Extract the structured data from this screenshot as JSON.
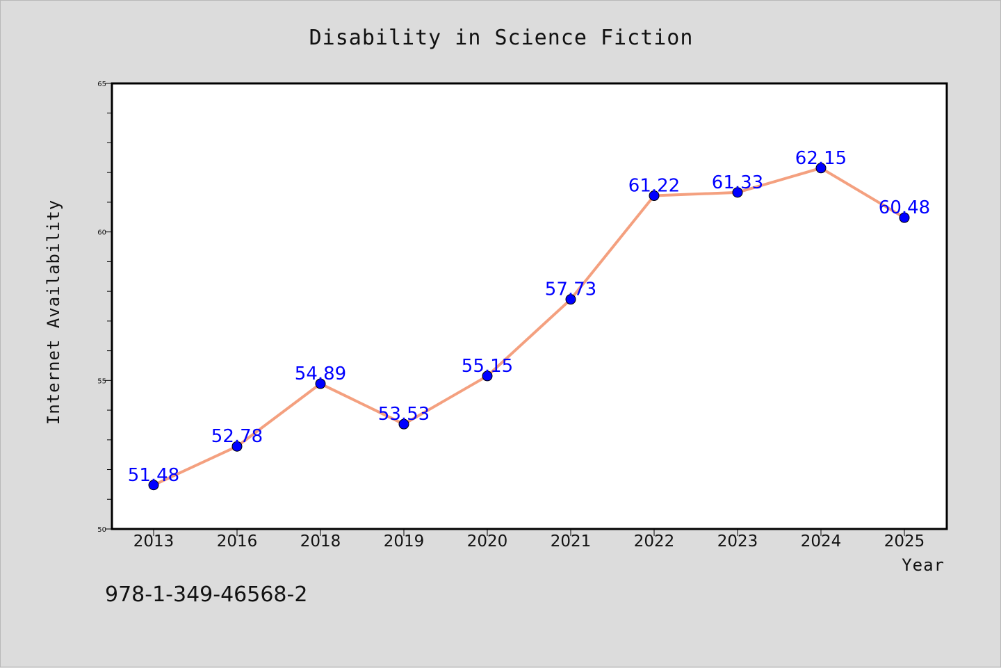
{
  "chart_data": {
    "type": "line",
    "title": "Disability in Science Fiction",
    "xlabel": "Year",
    "ylabel": "Internet Availability",
    "categories": [
      "2013",
      "2016",
      "2018",
      "2019",
      "2020",
      "2021",
      "2022",
      "2023",
      "2024",
      "2025"
    ],
    "series": [
      {
        "values": [
          51.48,
          52.78,
          54.89,
          53.53,
          55.15,
          57.73,
          61.22,
          61.33,
          62.15,
          60.48
        ]
      }
    ],
    "data_labels": [
      "51.48",
      "52.78",
      "54.89",
      "53.53",
      "55.15",
      "57.73",
      "61.22",
      "61.33",
      "62.15",
      "60.48"
    ],
    "ylim": [
      50,
      65
    ],
    "yticks": [
      50,
      55,
      60,
      65
    ],
    "grid": false,
    "colors": {
      "line": "#f4a07f",
      "marker": "#0000ff",
      "data_label": "#0000ff",
      "background": "#dcdcdc",
      "plot_background": "#ffffff"
    }
  },
  "footer_text": "978-1-349-46568-2"
}
